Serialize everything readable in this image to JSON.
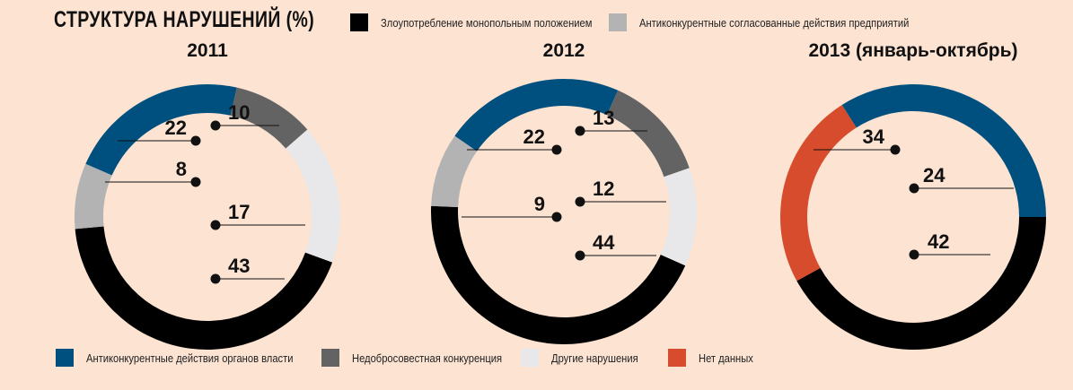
{
  "title": "СТРУКТУРА НАРУШЕНИЙ (%)",
  "legend_top": [
    {
      "label": "Злоупотребление монопольным положением",
      "color": "#000000"
    },
    {
      "label": "Антиконкурентные согласованные действия предприятий",
      "color": "#b3b3b3"
    }
  ],
  "legend_bottom": [
    {
      "label": "Антиконкурентные действия органов власти",
      "color": "#00507f"
    },
    {
      "label": "Недобросовестная конкуренция",
      "color": "#636363"
    },
    {
      "label": "Другие нарушения",
      "color": "#e8e8ea"
    },
    {
      "label": "Нет данных",
      "color": "#d74c2c"
    }
  ],
  "chart_data": [
    {
      "type": "pie",
      "title": "2011",
      "slices": [
        {
          "category": "Злоупотребление монопольным положением",
          "value": 43,
          "color": "#000000"
        },
        {
          "category": "Антиконкурентные согласованные действия предприятий",
          "value": 8,
          "color": "#b3b3b3"
        },
        {
          "category": "Антиконкурентные действия органов власти",
          "value": 22,
          "color": "#00507f"
        },
        {
          "category": "Недобросовестная конкуренция",
          "value": 10,
          "color": "#636363"
        },
        {
          "category": "Другие нарушения",
          "value": 17,
          "color": "#e8e8ea"
        }
      ]
    },
    {
      "type": "pie",
      "title": "2012",
      "slices": [
        {
          "category": "Злоупотребление монопольным положением",
          "value": 44,
          "color": "#000000"
        },
        {
          "category": "Антиконкурентные согласованные действия предприятий",
          "value": 9,
          "color": "#b3b3b3"
        },
        {
          "category": "Антиконкурентные действия органов власти",
          "value": 22,
          "color": "#00507f"
        },
        {
          "category": "Недобросовестная конкуренция",
          "value": 13,
          "color": "#636363"
        },
        {
          "category": "Другие нарушения",
          "value": 12,
          "color": "#e8e8ea"
        }
      ]
    },
    {
      "type": "pie",
      "title": "2013 (январь-октябрь)",
      "slices": [
        {
          "category": "Злоупотребление монопольным положением",
          "value": 42,
          "color": "#000000"
        },
        {
          "category": "Нет данных",
          "value": 24,
          "color": "#d74c2c"
        },
        {
          "category": "Антиконкурентные действия органов власти",
          "value": 34,
          "color": "#00507f"
        }
      ]
    }
  ]
}
